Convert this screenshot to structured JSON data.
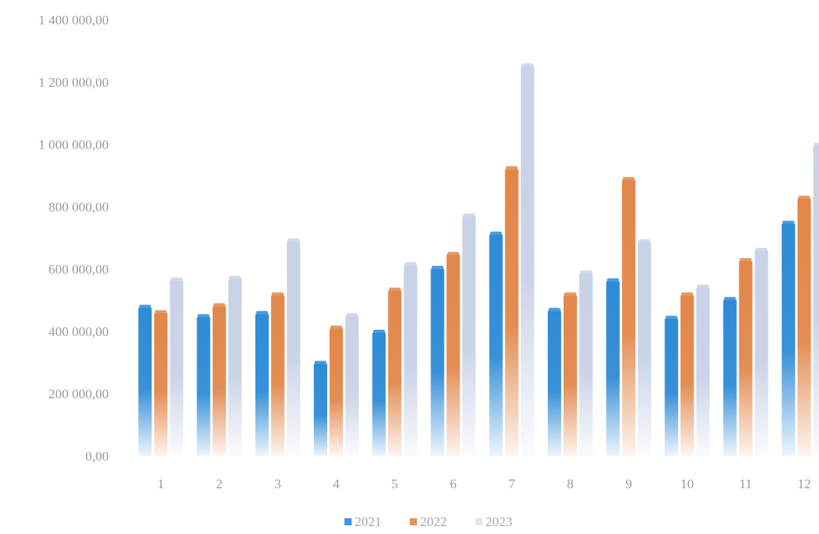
{
  "chart_data": {
    "type": "bar",
    "categories": [
      "1",
      "2",
      "3",
      "4",
      "5",
      "6",
      "7",
      "8",
      "9",
      "10",
      "11",
      "12"
    ],
    "y_ticks": [
      "0,00",
      "200 000,00",
      "400 000,00",
      "600 000,00",
      "800 000,00",
      "1 000 000,00",
      "1 200 000,00",
      "1 400 000,00"
    ],
    "ylim": [
      0,
      1400000
    ],
    "grid": false,
    "legend_position": "bottom",
    "series": [
      {
        "name": "2021",
        "color": "#2e8bd6",
        "values": [
          475000,
          445000,
          455000,
          295000,
          395000,
          600000,
          710000,
          465000,
          560000,
          440000,
          500000,
          745000
        ]
      },
      {
        "name": "2022",
        "color": "#e2874a",
        "values": [
          458000,
          480000,
          515000,
          408000,
          530000,
          645000,
          920000,
          515000,
          885000,
          515000,
          625000,
          825000
        ]
      },
      {
        "name": "2023",
        "color": "#c9d2e6",
        "values": [
          562000,
          568000,
          688000,
          448000,
          612000,
          768000,
          1250000,
          585000,
          685000,
          540000,
          658000,
          995000
        ]
      }
    ]
  }
}
